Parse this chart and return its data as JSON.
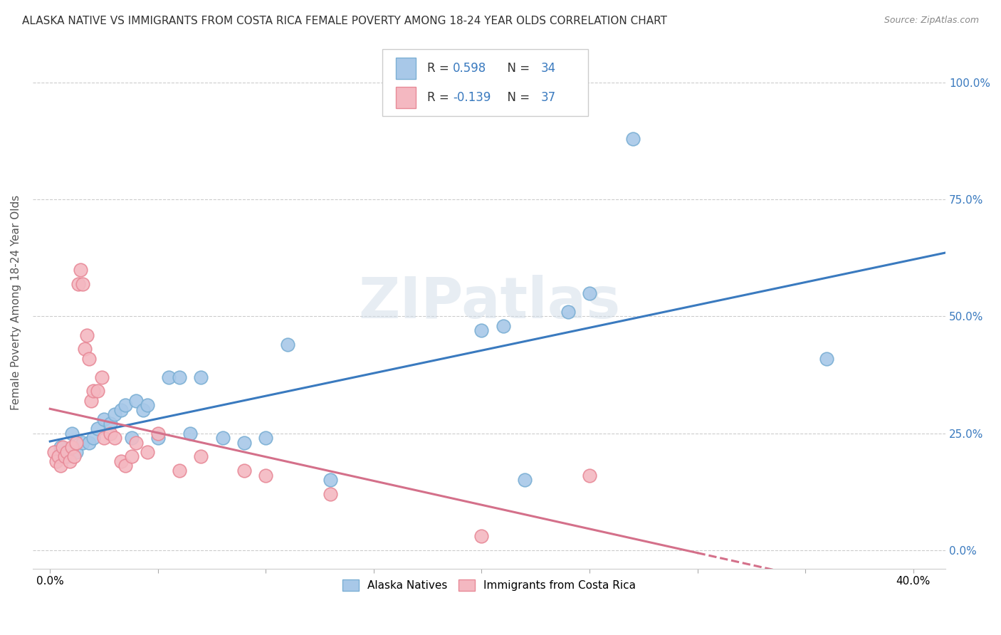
{
  "title": "ALASKA NATIVE VS IMMIGRANTS FROM COSTA RICA FEMALE POVERTY AMONG 18-24 YEAR OLDS CORRELATION CHART",
  "source": "Source: ZipAtlas.com",
  "ylabel": "Female Poverty Among 18-24 Year Olds",
  "ylabel_ticks": [
    0.0,
    0.25,
    0.5,
    0.75,
    1.0
  ],
  "xlim": [
    -0.008,
    0.415
  ],
  "ylim": [
    -0.04,
    1.1
  ],
  "blue_R": "0.598",
  "blue_N": "34",
  "pink_R": "-0.139",
  "pink_N": "37",
  "blue_dot_color": "#a8c8e8",
  "blue_dot_edge": "#7bafd4",
  "pink_dot_color": "#f4b8c1",
  "pink_dot_edge": "#e88a98",
  "blue_line_color": "#3a7abf",
  "pink_line_color": "#d4708a",
  "legend_text_color": "#3a7abf",
  "watermark": "ZIPatlas",
  "blue_scatter_x": [
    0.005,
    0.008,
    0.01,
    0.012,
    0.015,
    0.018,
    0.02,
    0.022,
    0.025,
    0.028,
    0.03,
    0.033,
    0.035,
    0.038,
    0.04,
    0.043,
    0.045,
    0.05,
    0.055,
    0.06,
    0.065,
    0.07,
    0.08,
    0.09,
    0.1,
    0.11,
    0.13,
    0.2,
    0.21,
    0.22,
    0.24,
    0.25,
    0.27,
    0.36
  ],
  "blue_scatter_y": [
    0.22,
    0.2,
    0.25,
    0.21,
    0.23,
    0.23,
    0.24,
    0.26,
    0.28,
    0.27,
    0.29,
    0.3,
    0.31,
    0.24,
    0.32,
    0.3,
    0.31,
    0.24,
    0.37,
    0.37,
    0.25,
    0.37,
    0.24,
    0.23,
    0.24,
    0.44,
    0.15,
    0.47,
    0.48,
    0.15,
    0.51,
    0.55,
    0.88,
    0.41
  ],
  "pink_scatter_x": [
    0.002,
    0.003,
    0.004,
    0.005,
    0.006,
    0.007,
    0.008,
    0.009,
    0.01,
    0.011,
    0.012,
    0.013,
    0.014,
    0.015,
    0.016,
    0.017,
    0.018,
    0.019,
    0.02,
    0.022,
    0.024,
    0.025,
    0.028,
    0.03,
    0.033,
    0.035,
    0.038,
    0.04,
    0.045,
    0.05,
    0.06,
    0.07,
    0.09,
    0.1,
    0.13,
    0.2,
    0.25
  ],
  "pink_scatter_y": [
    0.21,
    0.19,
    0.2,
    0.18,
    0.22,
    0.2,
    0.21,
    0.19,
    0.22,
    0.2,
    0.23,
    0.57,
    0.6,
    0.57,
    0.43,
    0.46,
    0.41,
    0.32,
    0.34,
    0.34,
    0.37,
    0.24,
    0.25,
    0.24,
    0.19,
    0.18,
    0.2,
    0.23,
    0.21,
    0.25,
    0.17,
    0.2,
    0.17,
    0.16,
    0.12,
    0.03,
    0.16
  ],
  "legend_label_blue": "Alaska Natives",
  "legend_label_pink": "Immigrants from Costa Rica",
  "blue_trend_x0": 0.0,
  "blue_trend_x1": 0.415,
  "pink_trend_x0": 0.0,
  "pink_trend_x1": 0.3,
  "pink_trend_dash_x0": 0.3,
  "pink_trend_dash_x1": 0.415
}
